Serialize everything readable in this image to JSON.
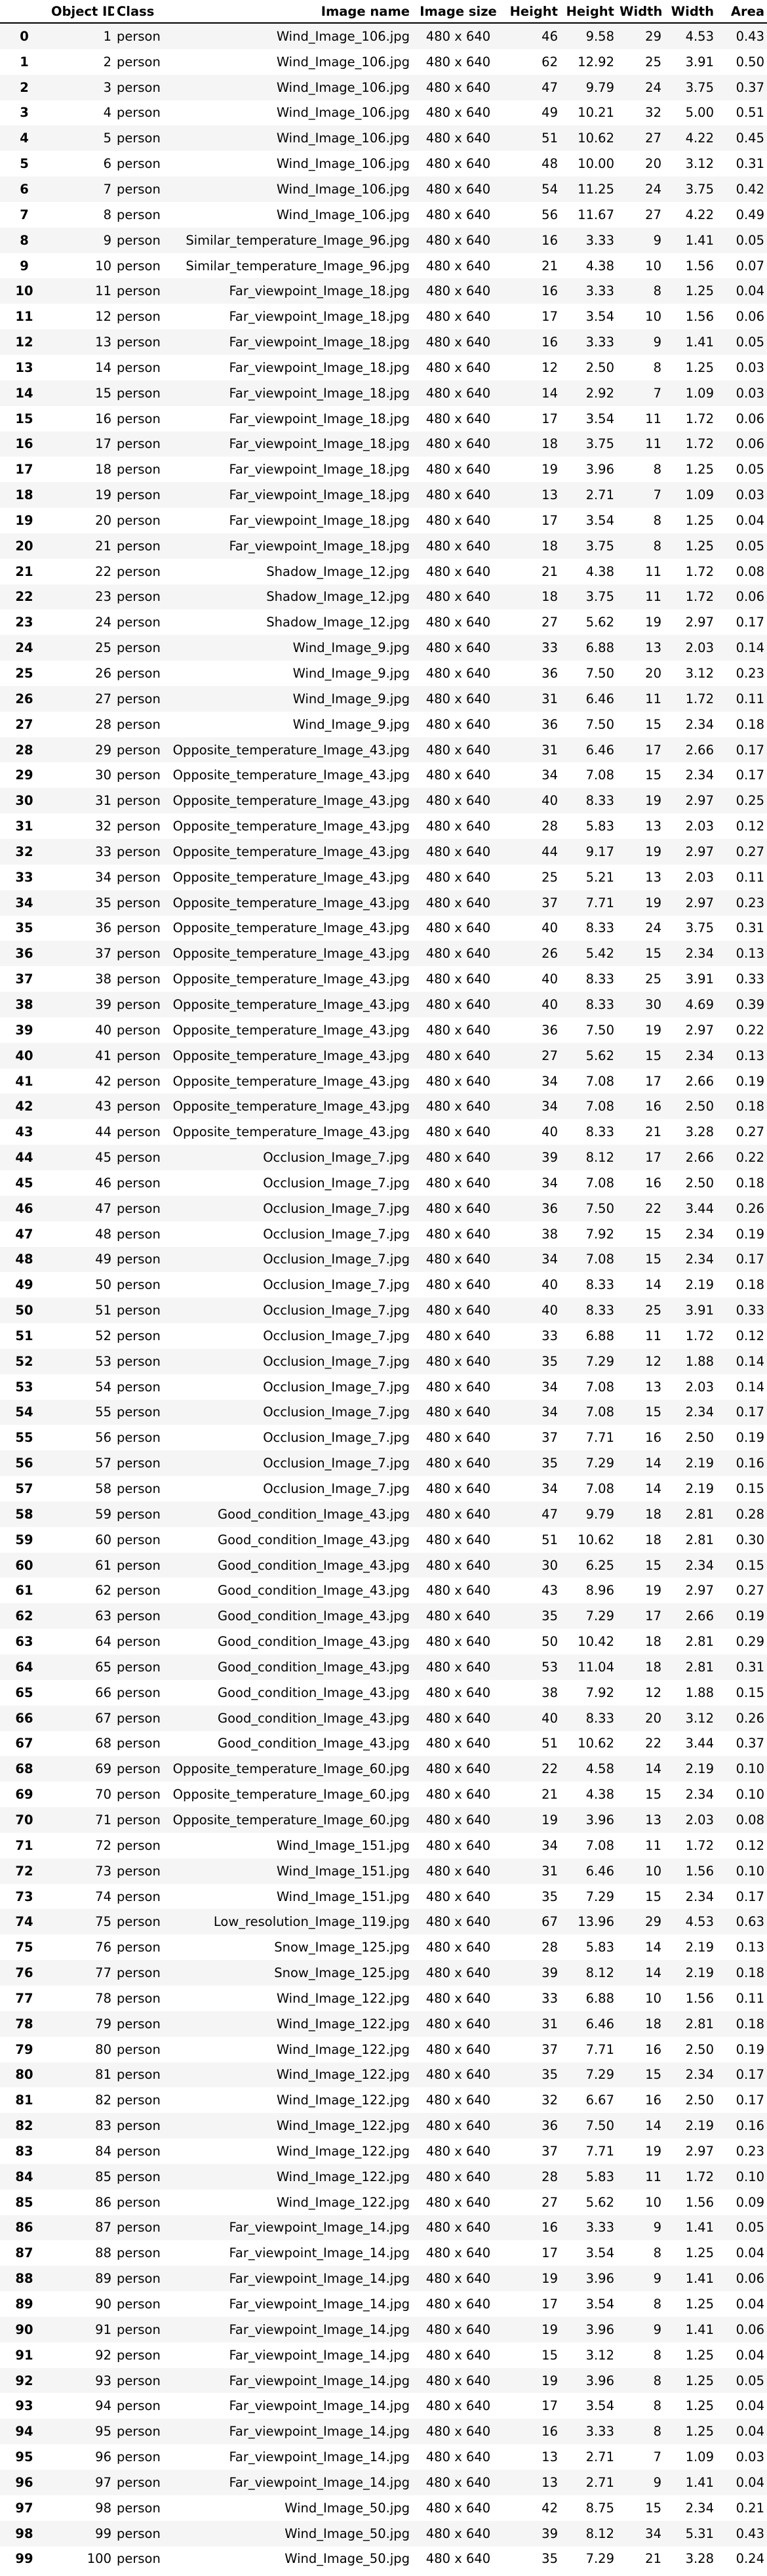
{
  "table": {
    "columns": [
      "",
      "Object ID",
      "Class",
      "Image name",
      "Image size",
      "Height",
      "Height",
      "Width",
      "Width",
      "Area"
    ],
    "rows": [
      [
        "0",
        "1",
        "person",
        "Wind_Image_106.jpg",
        "480 x 640",
        "46",
        "9.58",
        "29",
        "4.53",
        "0.43"
      ],
      [
        "1",
        "2",
        "person",
        "Wind_Image_106.jpg",
        "480 x 640",
        "62",
        "12.92",
        "25",
        "3.91",
        "0.50"
      ],
      [
        "2",
        "3",
        "person",
        "Wind_Image_106.jpg",
        "480 x 640",
        "47",
        "9.79",
        "24",
        "3.75",
        "0.37"
      ],
      [
        "3",
        "4",
        "person",
        "Wind_Image_106.jpg",
        "480 x 640",
        "49",
        "10.21",
        "32",
        "5.00",
        "0.51"
      ],
      [
        "4",
        "5",
        "person",
        "Wind_Image_106.jpg",
        "480 x 640",
        "51",
        "10.62",
        "27",
        "4.22",
        "0.45"
      ],
      [
        "5",
        "6",
        "person",
        "Wind_Image_106.jpg",
        "480 x 640",
        "48",
        "10.00",
        "20",
        "3.12",
        "0.31"
      ],
      [
        "6",
        "7",
        "person",
        "Wind_Image_106.jpg",
        "480 x 640",
        "54",
        "11.25",
        "24",
        "3.75",
        "0.42"
      ],
      [
        "7",
        "8",
        "person",
        "Wind_Image_106.jpg",
        "480 x 640",
        "56",
        "11.67",
        "27",
        "4.22",
        "0.49"
      ],
      [
        "8",
        "9",
        "person",
        "Similar_temperature_Image_96.jpg",
        "480 x 640",
        "16",
        "3.33",
        "9",
        "1.41",
        "0.05"
      ],
      [
        "9",
        "10",
        "person",
        "Similar_temperature_Image_96.jpg",
        "480 x 640",
        "21",
        "4.38",
        "10",
        "1.56",
        "0.07"
      ],
      [
        "10",
        "11",
        "person",
        "Far_viewpoint_Image_18.jpg",
        "480 x 640",
        "16",
        "3.33",
        "8",
        "1.25",
        "0.04"
      ],
      [
        "11",
        "12",
        "person",
        "Far_viewpoint_Image_18.jpg",
        "480 x 640",
        "17",
        "3.54",
        "10",
        "1.56",
        "0.06"
      ],
      [
        "12",
        "13",
        "person",
        "Far_viewpoint_Image_18.jpg",
        "480 x 640",
        "16",
        "3.33",
        "9",
        "1.41",
        "0.05"
      ],
      [
        "13",
        "14",
        "person",
        "Far_viewpoint_Image_18.jpg",
        "480 x 640",
        "12",
        "2.50",
        "8",
        "1.25",
        "0.03"
      ],
      [
        "14",
        "15",
        "person",
        "Far_viewpoint_Image_18.jpg",
        "480 x 640",
        "14",
        "2.92",
        "7",
        "1.09",
        "0.03"
      ],
      [
        "15",
        "16",
        "person",
        "Far_viewpoint_Image_18.jpg",
        "480 x 640",
        "17",
        "3.54",
        "11",
        "1.72",
        "0.06"
      ],
      [
        "16",
        "17",
        "person",
        "Far_viewpoint_Image_18.jpg",
        "480 x 640",
        "18",
        "3.75",
        "11",
        "1.72",
        "0.06"
      ],
      [
        "17",
        "18",
        "person",
        "Far_viewpoint_Image_18.jpg",
        "480 x 640",
        "19",
        "3.96",
        "8",
        "1.25",
        "0.05"
      ],
      [
        "18",
        "19",
        "person",
        "Far_viewpoint_Image_18.jpg",
        "480 x 640",
        "13",
        "2.71",
        "7",
        "1.09",
        "0.03"
      ],
      [
        "19",
        "20",
        "person",
        "Far_viewpoint_Image_18.jpg",
        "480 x 640",
        "17",
        "3.54",
        "8",
        "1.25",
        "0.04"
      ],
      [
        "20",
        "21",
        "person",
        "Far_viewpoint_Image_18.jpg",
        "480 x 640",
        "18",
        "3.75",
        "8",
        "1.25",
        "0.05"
      ],
      [
        "21",
        "22",
        "person",
        "Shadow_Image_12.jpg",
        "480 x 640",
        "21",
        "4.38",
        "11",
        "1.72",
        "0.08"
      ],
      [
        "22",
        "23",
        "person",
        "Shadow_Image_12.jpg",
        "480 x 640",
        "18",
        "3.75",
        "11",
        "1.72",
        "0.06"
      ],
      [
        "23",
        "24",
        "person",
        "Shadow_Image_12.jpg",
        "480 x 640",
        "27",
        "5.62",
        "19",
        "2.97",
        "0.17"
      ],
      [
        "24",
        "25",
        "person",
        "Wind_Image_9.jpg",
        "480 x 640",
        "33",
        "6.88",
        "13",
        "2.03",
        "0.14"
      ],
      [
        "25",
        "26",
        "person",
        "Wind_Image_9.jpg",
        "480 x 640",
        "36",
        "7.50",
        "20",
        "3.12",
        "0.23"
      ],
      [
        "26",
        "27",
        "person",
        "Wind_Image_9.jpg",
        "480 x 640",
        "31",
        "6.46",
        "11",
        "1.72",
        "0.11"
      ],
      [
        "27",
        "28",
        "person",
        "Wind_Image_9.jpg",
        "480 x 640",
        "36",
        "7.50",
        "15",
        "2.34",
        "0.18"
      ],
      [
        "28",
        "29",
        "person",
        "Opposite_temperature_Image_43.jpg",
        "480 x 640",
        "31",
        "6.46",
        "17",
        "2.66",
        "0.17"
      ],
      [
        "29",
        "30",
        "person",
        "Opposite_temperature_Image_43.jpg",
        "480 x 640",
        "34",
        "7.08",
        "15",
        "2.34",
        "0.17"
      ],
      [
        "30",
        "31",
        "person",
        "Opposite_temperature_Image_43.jpg",
        "480 x 640",
        "40",
        "8.33",
        "19",
        "2.97",
        "0.25"
      ],
      [
        "31",
        "32",
        "person",
        "Opposite_temperature_Image_43.jpg",
        "480 x 640",
        "28",
        "5.83",
        "13",
        "2.03",
        "0.12"
      ],
      [
        "32",
        "33",
        "person",
        "Opposite_temperature_Image_43.jpg",
        "480 x 640",
        "44",
        "9.17",
        "19",
        "2.97",
        "0.27"
      ],
      [
        "33",
        "34",
        "person",
        "Opposite_temperature_Image_43.jpg",
        "480 x 640",
        "25",
        "5.21",
        "13",
        "2.03",
        "0.11"
      ],
      [
        "34",
        "35",
        "person",
        "Opposite_temperature_Image_43.jpg",
        "480 x 640",
        "37",
        "7.71",
        "19",
        "2.97",
        "0.23"
      ],
      [
        "35",
        "36",
        "person",
        "Opposite_temperature_Image_43.jpg",
        "480 x 640",
        "40",
        "8.33",
        "24",
        "3.75",
        "0.31"
      ],
      [
        "36",
        "37",
        "person",
        "Opposite_temperature_Image_43.jpg",
        "480 x 640",
        "26",
        "5.42",
        "15",
        "2.34",
        "0.13"
      ],
      [
        "37",
        "38",
        "person",
        "Opposite_temperature_Image_43.jpg",
        "480 x 640",
        "40",
        "8.33",
        "25",
        "3.91",
        "0.33"
      ],
      [
        "38",
        "39",
        "person",
        "Opposite_temperature_Image_43.jpg",
        "480 x 640",
        "40",
        "8.33",
        "30",
        "4.69",
        "0.39"
      ],
      [
        "39",
        "40",
        "person",
        "Opposite_temperature_Image_43.jpg",
        "480 x 640",
        "36",
        "7.50",
        "19",
        "2.97",
        "0.22"
      ],
      [
        "40",
        "41",
        "person",
        "Opposite_temperature_Image_43.jpg",
        "480 x 640",
        "27",
        "5.62",
        "15",
        "2.34",
        "0.13"
      ],
      [
        "41",
        "42",
        "person",
        "Opposite_temperature_Image_43.jpg",
        "480 x 640",
        "34",
        "7.08",
        "17",
        "2.66",
        "0.19"
      ],
      [
        "42",
        "43",
        "person",
        "Opposite_temperature_Image_43.jpg",
        "480 x 640",
        "34",
        "7.08",
        "16",
        "2.50",
        "0.18"
      ],
      [
        "43",
        "44",
        "person",
        "Opposite_temperature_Image_43.jpg",
        "480 x 640",
        "40",
        "8.33",
        "21",
        "3.28",
        "0.27"
      ],
      [
        "44",
        "45",
        "person",
        "Occlusion_Image_7.jpg",
        "480 x 640",
        "39",
        "8.12",
        "17",
        "2.66",
        "0.22"
      ],
      [
        "45",
        "46",
        "person",
        "Occlusion_Image_7.jpg",
        "480 x 640",
        "34",
        "7.08",
        "16",
        "2.50",
        "0.18"
      ],
      [
        "46",
        "47",
        "person",
        "Occlusion_Image_7.jpg",
        "480 x 640",
        "36",
        "7.50",
        "22",
        "3.44",
        "0.26"
      ],
      [
        "47",
        "48",
        "person",
        "Occlusion_Image_7.jpg",
        "480 x 640",
        "38",
        "7.92",
        "15",
        "2.34",
        "0.19"
      ],
      [
        "48",
        "49",
        "person",
        "Occlusion_Image_7.jpg",
        "480 x 640",
        "34",
        "7.08",
        "15",
        "2.34",
        "0.17"
      ],
      [
        "49",
        "50",
        "person",
        "Occlusion_Image_7.jpg",
        "480 x 640",
        "40",
        "8.33",
        "14",
        "2.19",
        "0.18"
      ],
      [
        "50",
        "51",
        "person",
        "Occlusion_Image_7.jpg",
        "480 x 640",
        "40",
        "8.33",
        "25",
        "3.91",
        "0.33"
      ],
      [
        "51",
        "52",
        "person",
        "Occlusion_Image_7.jpg",
        "480 x 640",
        "33",
        "6.88",
        "11",
        "1.72",
        "0.12"
      ],
      [
        "52",
        "53",
        "person",
        "Occlusion_Image_7.jpg",
        "480 x 640",
        "35",
        "7.29",
        "12",
        "1.88",
        "0.14"
      ],
      [
        "53",
        "54",
        "person",
        "Occlusion_Image_7.jpg",
        "480 x 640",
        "34",
        "7.08",
        "13",
        "2.03",
        "0.14"
      ],
      [
        "54",
        "55",
        "person",
        "Occlusion_Image_7.jpg",
        "480 x 640",
        "34",
        "7.08",
        "15",
        "2.34",
        "0.17"
      ],
      [
        "55",
        "56",
        "person",
        "Occlusion_Image_7.jpg",
        "480 x 640",
        "37",
        "7.71",
        "16",
        "2.50",
        "0.19"
      ],
      [
        "56",
        "57",
        "person",
        "Occlusion_Image_7.jpg",
        "480 x 640",
        "35",
        "7.29",
        "14",
        "2.19",
        "0.16"
      ],
      [
        "57",
        "58",
        "person",
        "Occlusion_Image_7.jpg",
        "480 x 640",
        "34",
        "7.08",
        "14",
        "2.19",
        "0.15"
      ],
      [
        "58",
        "59",
        "person",
        "Good_condition_Image_43.jpg",
        "480 x 640",
        "47",
        "9.79",
        "18",
        "2.81",
        "0.28"
      ],
      [
        "59",
        "60",
        "person",
        "Good_condition_Image_43.jpg",
        "480 x 640",
        "51",
        "10.62",
        "18",
        "2.81",
        "0.30"
      ],
      [
        "60",
        "61",
        "person",
        "Good_condition_Image_43.jpg",
        "480 x 640",
        "30",
        "6.25",
        "15",
        "2.34",
        "0.15"
      ],
      [
        "61",
        "62",
        "person",
        "Good_condition_Image_43.jpg",
        "480 x 640",
        "43",
        "8.96",
        "19",
        "2.97",
        "0.27"
      ],
      [
        "62",
        "63",
        "person",
        "Good_condition_Image_43.jpg",
        "480 x 640",
        "35",
        "7.29",
        "17",
        "2.66",
        "0.19"
      ],
      [
        "63",
        "64",
        "person",
        "Good_condition_Image_43.jpg",
        "480 x 640",
        "50",
        "10.42",
        "18",
        "2.81",
        "0.29"
      ],
      [
        "64",
        "65",
        "person",
        "Good_condition_Image_43.jpg",
        "480 x 640",
        "53",
        "11.04",
        "18",
        "2.81",
        "0.31"
      ],
      [
        "65",
        "66",
        "person",
        "Good_condition_Image_43.jpg",
        "480 x 640",
        "38",
        "7.92",
        "12",
        "1.88",
        "0.15"
      ],
      [
        "66",
        "67",
        "person",
        "Good_condition_Image_43.jpg",
        "480 x 640",
        "40",
        "8.33",
        "20",
        "3.12",
        "0.26"
      ],
      [
        "67",
        "68",
        "person",
        "Good_condition_Image_43.jpg",
        "480 x 640",
        "51",
        "10.62",
        "22",
        "3.44",
        "0.37"
      ],
      [
        "68",
        "69",
        "person",
        "Opposite_temperature_Image_60.jpg",
        "480 x 640",
        "22",
        "4.58",
        "14",
        "2.19",
        "0.10"
      ],
      [
        "69",
        "70",
        "person",
        "Opposite_temperature_Image_60.jpg",
        "480 x 640",
        "21",
        "4.38",
        "15",
        "2.34",
        "0.10"
      ],
      [
        "70",
        "71",
        "person",
        "Opposite_temperature_Image_60.jpg",
        "480 x 640",
        "19",
        "3.96",
        "13",
        "2.03",
        "0.08"
      ],
      [
        "71",
        "72",
        "person",
        "Wind_Image_151.jpg",
        "480 x 640",
        "34",
        "7.08",
        "11",
        "1.72",
        "0.12"
      ],
      [
        "72",
        "73",
        "person",
        "Wind_Image_151.jpg",
        "480 x 640",
        "31",
        "6.46",
        "10",
        "1.56",
        "0.10"
      ],
      [
        "73",
        "74",
        "person",
        "Wind_Image_151.jpg",
        "480 x 640",
        "35",
        "7.29",
        "15",
        "2.34",
        "0.17"
      ],
      [
        "74",
        "75",
        "person",
        "Low_resolution_Image_119.jpg",
        "480 x 640",
        "67",
        "13.96",
        "29",
        "4.53",
        "0.63"
      ],
      [
        "75",
        "76",
        "person",
        "Snow_Image_125.jpg",
        "480 x 640",
        "28",
        "5.83",
        "14",
        "2.19",
        "0.13"
      ],
      [
        "76",
        "77",
        "person",
        "Snow_Image_125.jpg",
        "480 x 640",
        "39",
        "8.12",
        "14",
        "2.19",
        "0.18"
      ],
      [
        "77",
        "78",
        "person",
        "Wind_Image_122.jpg",
        "480 x 640",
        "33",
        "6.88",
        "10",
        "1.56",
        "0.11"
      ],
      [
        "78",
        "79",
        "person",
        "Wind_Image_122.jpg",
        "480 x 640",
        "31",
        "6.46",
        "18",
        "2.81",
        "0.18"
      ],
      [
        "79",
        "80",
        "person",
        "Wind_Image_122.jpg",
        "480 x 640",
        "37",
        "7.71",
        "16",
        "2.50",
        "0.19"
      ],
      [
        "80",
        "81",
        "person",
        "Wind_Image_122.jpg",
        "480 x 640",
        "35",
        "7.29",
        "15",
        "2.34",
        "0.17"
      ],
      [
        "81",
        "82",
        "person",
        "Wind_Image_122.jpg",
        "480 x 640",
        "32",
        "6.67",
        "16",
        "2.50",
        "0.17"
      ],
      [
        "82",
        "83",
        "person",
        "Wind_Image_122.jpg",
        "480 x 640",
        "36",
        "7.50",
        "14",
        "2.19",
        "0.16"
      ],
      [
        "83",
        "84",
        "person",
        "Wind_Image_122.jpg",
        "480 x 640",
        "37",
        "7.71",
        "19",
        "2.97",
        "0.23"
      ],
      [
        "84",
        "85",
        "person",
        "Wind_Image_122.jpg",
        "480 x 640",
        "28",
        "5.83",
        "11",
        "1.72",
        "0.10"
      ],
      [
        "85",
        "86",
        "person",
        "Wind_Image_122.jpg",
        "480 x 640",
        "27",
        "5.62",
        "10",
        "1.56",
        "0.09"
      ],
      [
        "86",
        "87",
        "person",
        "Far_viewpoint_Image_14.jpg",
        "480 x 640",
        "16",
        "3.33",
        "9",
        "1.41",
        "0.05"
      ],
      [
        "87",
        "88",
        "person",
        "Far_viewpoint_Image_14.jpg",
        "480 x 640",
        "17",
        "3.54",
        "8",
        "1.25",
        "0.04"
      ],
      [
        "88",
        "89",
        "person",
        "Far_viewpoint_Image_14.jpg",
        "480 x 640",
        "19",
        "3.96",
        "9",
        "1.41",
        "0.06"
      ],
      [
        "89",
        "90",
        "person",
        "Far_viewpoint_Image_14.jpg",
        "480 x 640",
        "17",
        "3.54",
        "8",
        "1.25",
        "0.04"
      ],
      [
        "90",
        "91",
        "person",
        "Far_viewpoint_Image_14.jpg",
        "480 x 640",
        "19",
        "3.96",
        "9",
        "1.41",
        "0.06"
      ],
      [
        "91",
        "92",
        "person",
        "Far_viewpoint_Image_14.jpg",
        "480 x 640",
        "15",
        "3.12",
        "8",
        "1.25",
        "0.04"
      ],
      [
        "92",
        "93",
        "person",
        "Far_viewpoint_Image_14.jpg",
        "480 x 640",
        "19",
        "3.96",
        "8",
        "1.25",
        "0.05"
      ],
      [
        "93",
        "94",
        "person",
        "Far_viewpoint_Image_14.jpg",
        "480 x 640",
        "17",
        "3.54",
        "8",
        "1.25",
        "0.04"
      ],
      [
        "94",
        "95",
        "person",
        "Far_viewpoint_Image_14.jpg",
        "480 x 640",
        "16",
        "3.33",
        "8",
        "1.25",
        "0.04"
      ],
      [
        "95",
        "96",
        "person",
        "Far_viewpoint_Image_14.jpg",
        "480 x 640",
        "13",
        "2.71",
        "7",
        "1.09",
        "0.03"
      ],
      [
        "96",
        "97",
        "person",
        "Far_viewpoint_Image_14.jpg",
        "480 x 640",
        "13",
        "2.71",
        "9",
        "1.41",
        "0.04"
      ],
      [
        "97",
        "98",
        "person",
        "Wind_Image_50.jpg",
        "480 x 640",
        "42",
        "8.75",
        "15",
        "2.34",
        "0.21"
      ],
      [
        "98",
        "99",
        "person",
        "Wind_Image_50.jpg",
        "480 x 640",
        "39",
        "8.12",
        "34",
        "5.31",
        "0.43"
      ],
      [
        "99",
        "100",
        "person",
        "Wind_Image_50.jpg",
        "480 x 640",
        "35",
        "7.29",
        "21",
        "3.28",
        "0.24"
      ]
    ]
  }
}
